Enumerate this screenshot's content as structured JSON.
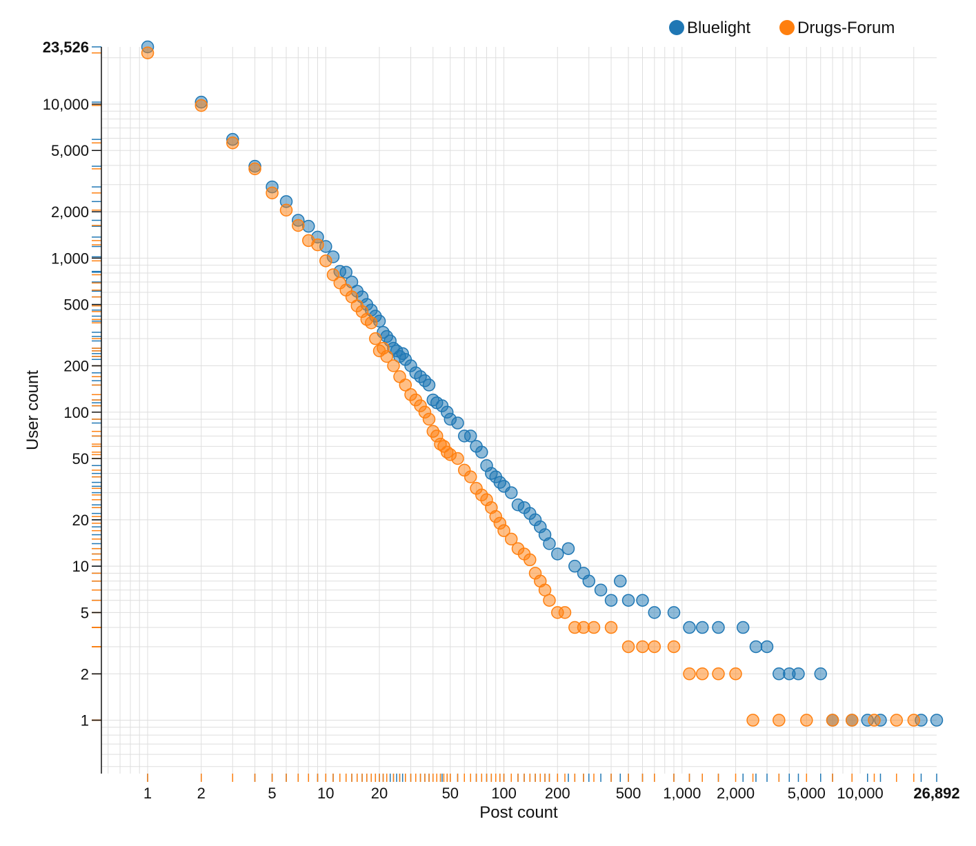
{
  "chart_data": {
    "type": "scatter",
    "xscale": "log",
    "yscale": "log",
    "xlabel": "Post count",
    "ylabel": "User count",
    "xlim": [
      0.55,
      26892
    ],
    "ylim": [
      0.45,
      23526
    ],
    "x_ticks": [
      "1",
      "2",
      "5",
      "10",
      "20",
      "50",
      "100",
      "200",
      "500",
      "1,000",
      "2,000",
      "5,000",
      "10,000"
    ],
    "x_tick_values": [
      1,
      2,
      5,
      10,
      20,
      50,
      100,
      200,
      500,
      1000,
      2000,
      5000,
      10000
    ],
    "x_max_label": "26,892",
    "y_ticks": [
      "1",
      "2",
      "5",
      "10",
      "20",
      "50",
      "100",
      "200",
      "500",
      "1,000",
      "2,000",
      "5,000",
      "10,000"
    ],
    "y_tick_values": [
      1,
      2,
      5,
      10,
      20,
      50,
      100,
      200,
      500,
      1000,
      2000,
      5000,
      10000
    ],
    "y_max_label": "23,526",
    "grid": true,
    "legend_position": "top-right",
    "series": [
      {
        "name": "Bluelight",
        "color": "#1f77b4",
        "points": [
          [
            1,
            23526
          ],
          [
            2,
            10300
          ],
          [
            3,
            5900
          ],
          [
            4,
            3950
          ],
          [
            5,
            2900
          ],
          [
            6,
            2330
          ],
          [
            7,
            1760
          ],
          [
            8,
            1610
          ],
          [
            9,
            1370
          ],
          [
            10,
            1190
          ],
          [
            11,
            1020
          ],
          [
            12,
            820
          ],
          [
            13,
            810
          ],
          [
            14,
            700
          ],
          [
            15,
            610
          ],
          [
            16,
            560
          ],
          [
            17,
            500
          ],
          [
            18,
            460
          ],
          [
            19,
            420
          ],
          [
            20,
            390
          ],
          [
            21,
            330
          ],
          [
            22,
            310
          ],
          [
            23,
            290
          ],
          [
            24,
            260
          ],
          [
            25,
            250
          ],
          [
            26,
            230
          ],
          [
            27,
            240
          ],
          [
            28,
            220
          ],
          [
            30,
            200
          ],
          [
            32,
            180
          ],
          [
            34,
            170
          ],
          [
            36,
            160
          ],
          [
            38,
            150
          ],
          [
            40,
            120
          ],
          [
            42,
            115
          ],
          [
            45,
            110
          ],
          [
            48,
            100
          ],
          [
            50,
            90
          ],
          [
            55,
            85
          ],
          [
            60,
            70
          ],
          [
            65,
            70
          ],
          [
            70,
            60
          ],
          [
            75,
            55
          ],
          [
            80,
            45
          ],
          [
            85,
            40
          ],
          [
            90,
            38
          ],
          [
            95,
            35
          ],
          [
            100,
            33
          ],
          [
            110,
            30
          ],
          [
            120,
            25
          ],
          [
            130,
            24
          ],
          [
            140,
            22
          ],
          [
            150,
            20
          ],
          [
            160,
            18
          ],
          [
            170,
            16
          ],
          [
            180,
            14
          ],
          [
            200,
            12
          ],
          [
            230,
            13
          ],
          [
            250,
            10
          ],
          [
            280,
            9
          ],
          [
            300,
            8
          ],
          [
            350,
            7
          ],
          [
            400,
            6
          ],
          [
            450,
            8
          ],
          [
            500,
            6
          ],
          [
            600,
            6
          ],
          [
            700,
            5
          ],
          [
            900,
            5
          ],
          [
            1100,
            4
          ],
          [
            1300,
            4
          ],
          [
            1600,
            4
          ],
          [
            2200,
            4
          ],
          [
            2600,
            3
          ],
          [
            3000,
            3
          ],
          [
            3500,
            2
          ],
          [
            4000,
            2
          ],
          [
            4500,
            2
          ],
          [
            6000,
            2
          ],
          [
            7000,
            1
          ],
          [
            9000,
            1
          ],
          [
            11000,
            1
          ],
          [
            13000,
            1
          ],
          [
            22000,
            1
          ],
          [
            26892,
            1
          ]
        ]
      },
      {
        "name": "Drugs-Forum",
        "color": "#ff7f0e",
        "points": [
          [
            1,
            21500
          ],
          [
            2,
            9800
          ],
          [
            3,
            5600
          ],
          [
            4,
            3800
          ],
          [
            5,
            2650
          ],
          [
            6,
            2050
          ],
          [
            7,
            1630
          ],
          [
            8,
            1300
          ],
          [
            9,
            1220
          ],
          [
            10,
            960
          ],
          [
            11,
            780
          ],
          [
            12,
            690
          ],
          [
            13,
            620
          ],
          [
            14,
            560
          ],
          [
            15,
            490
          ],
          [
            16,
            450
          ],
          [
            17,
            400
          ],
          [
            18,
            380
          ],
          [
            19,
            300
          ],
          [
            20,
            250
          ],
          [
            21,
            260
          ],
          [
            22,
            230
          ],
          [
            24,
            200
          ],
          [
            26,
            170
          ],
          [
            28,
            150
          ],
          [
            30,
            130
          ],
          [
            32,
            120
          ],
          [
            34,
            110
          ],
          [
            36,
            100
          ],
          [
            38,
            90
          ],
          [
            40,
            75
          ],
          [
            42,
            70
          ],
          [
            44,
            62
          ],
          [
            46,
            60
          ],
          [
            48,
            55
          ],
          [
            50,
            53
          ],
          [
            55,
            50
          ],
          [
            60,
            42
          ],
          [
            65,
            38
          ],
          [
            70,
            32
          ],
          [
            75,
            29
          ],
          [
            80,
            27
          ],
          [
            85,
            24
          ],
          [
            90,
            21
          ],
          [
            95,
            19
          ],
          [
            100,
            17
          ],
          [
            110,
            15
          ],
          [
            120,
            13
          ],
          [
            130,
            12
          ],
          [
            140,
            11
          ],
          [
            150,
            9
          ],
          [
            160,
            8
          ],
          [
            170,
            7
          ],
          [
            180,
            6
          ],
          [
            200,
            5
          ],
          [
            220,
            5
          ],
          [
            250,
            4
          ],
          [
            280,
            4
          ],
          [
            320,
            4
          ],
          [
            400,
            4
          ],
          [
            500,
            3
          ],
          [
            600,
            3
          ],
          [
            700,
            3
          ],
          [
            900,
            3
          ],
          [
            1100,
            2
          ],
          [
            1300,
            2
          ],
          [
            1600,
            2
          ],
          [
            2000,
            2
          ],
          [
            2500,
            1
          ],
          [
            3500,
            1
          ],
          [
            5000,
            1
          ],
          [
            7000,
            1
          ],
          [
            9000,
            1
          ],
          [
            12000,
            1
          ],
          [
            16000,
            1
          ],
          [
            20000,
            1
          ]
        ]
      }
    ]
  }
}
